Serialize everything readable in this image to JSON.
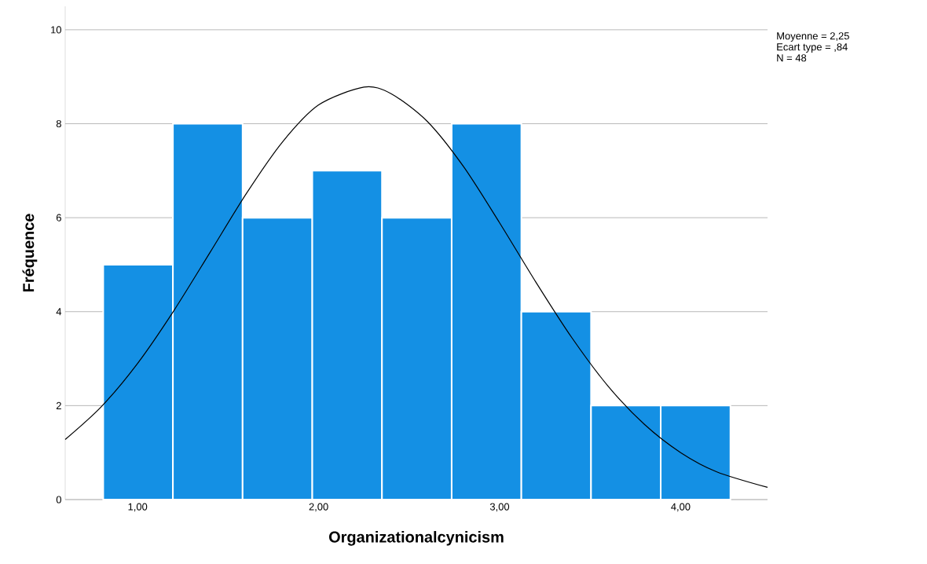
{
  "chart_data": {
    "type": "histogram",
    "xlabel": "Organizationalcynicism",
    "ylabel": "Fréquence",
    "bins": [
      0.81,
      1.195,
      1.58,
      1.965,
      2.35,
      2.735,
      3.12,
      3.505,
      3.89,
      4.275
    ],
    "values": [
      5,
      8,
      6,
      7,
      6,
      8,
      4,
      2,
      2
    ],
    "color": "#1490e4",
    "series": [
      {
        "type": "line",
        "color": "#000000",
        "x": [
          0.6,
          0.8,
          1.0,
          1.2,
          1.4,
          1.6,
          1.8,
          2.0,
          2.25,
          2.4,
          2.6,
          2.8,
          3.0,
          3.2,
          3.4,
          3.6,
          3.8,
          4.0,
          4.2,
          4.48
        ],
        "values": [
          1.28,
          1.98,
          2.9,
          4.02,
          5.26,
          6.51,
          7.61,
          8.4,
          8.78,
          8.64,
          8.05,
          7.09,
          5.89,
          4.63,
          3.44,
          2.41,
          1.6,
          1.0,
          0.59,
          0.26
        ]
      }
    ],
    "xlim": [
      0.6,
      4.48
    ],
    "ylim": [
      0,
      10.5
    ],
    "xticks": [
      {
        "value": 1,
        "label": "1,00"
      },
      {
        "value": 2,
        "label": "2,00"
      },
      {
        "value": 3,
        "label": "3,00"
      },
      {
        "value": 4,
        "label": "4,00"
      }
    ],
    "yticks": [
      0,
      2,
      4,
      6,
      8,
      10
    ],
    "grid": "y",
    "marker": "none",
    "line_style": "solid",
    "annotations": [
      "Moyenne = 2,25",
      "Ecart type = ,84",
      "N = 48"
    ]
  }
}
